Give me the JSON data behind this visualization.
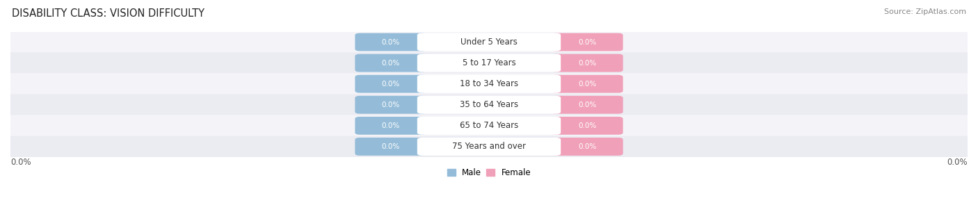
{
  "title": "DISABILITY CLASS: VISION DIFFICULTY",
  "source": "Source: ZipAtlas.com",
  "categories": [
    "Under 5 Years",
    "5 to 17 Years",
    "18 to 34 Years",
    "35 to 64 Years",
    "65 to 74 Years",
    "75 Years and over"
  ],
  "male_values": [
    0.0,
    0.0,
    0.0,
    0.0,
    0.0,
    0.0
  ],
  "female_values": [
    0.0,
    0.0,
    0.0,
    0.0,
    0.0,
    0.0
  ],
  "male_color": "#94bcd8",
  "female_color": "#f0a0b8",
  "row_bg_light": "#f4f4f8",
  "row_bg_dark": "#ebebf2",
  "row_full_color": "#e4e4ec",
  "xlim_left": "0.0%",
  "xlim_right": "0.0%",
  "title_fontsize": 10.5,
  "source_fontsize": 8,
  "label_fontsize": 8.5,
  "value_fontsize": 7.5,
  "category_fontsize": 8.5,
  "figsize": [
    14.06,
    3.05
  ],
  "dpi": 100
}
